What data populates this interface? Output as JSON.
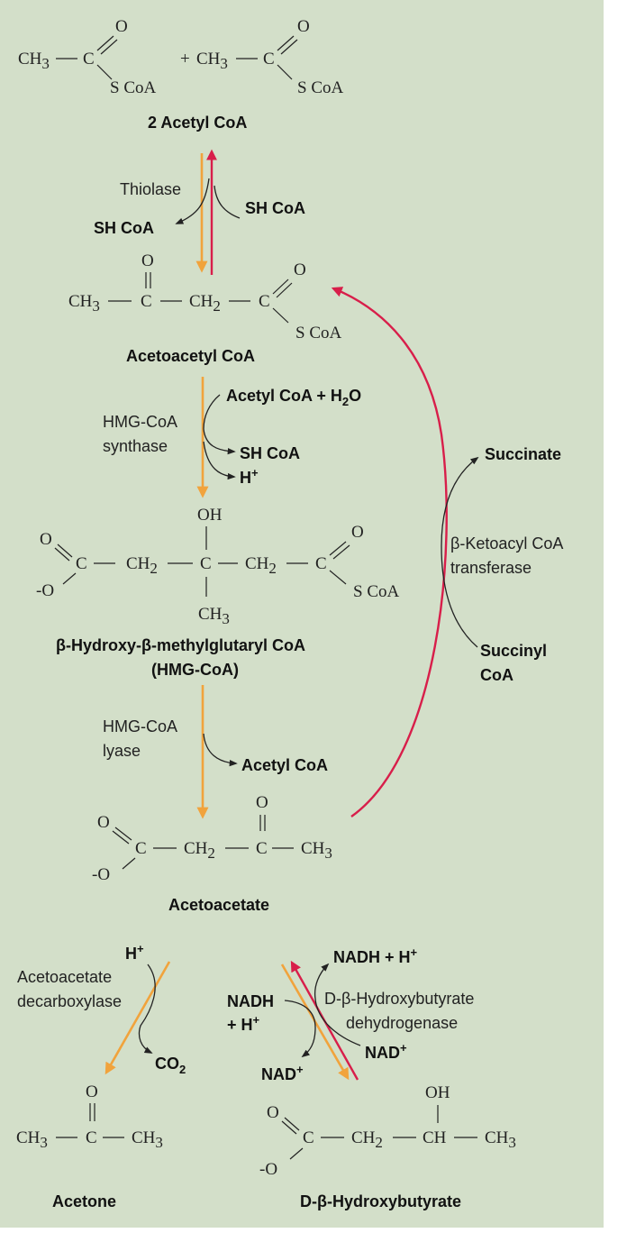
{
  "molecules": {
    "acetyl_coa": {
      "ch3": "CH",
      "sub3": "3",
      "c": "C",
      "o": "O",
      "scoa": "S CoA",
      "plus": "+"
    },
    "acetoacetyl_coa": {
      "ch3": "CH",
      "c": "C",
      "ch2": "CH",
      "o": "O",
      "scoa": "S CoA",
      "dash": "—"
    },
    "hmg": {
      "oh": "OH",
      "ch3": "CH",
      "o": "O",
      "o_minus": "-O",
      "scoa": "S CoA"
    },
    "acetoacetate": {
      "o": "O",
      "o_minus": "-O",
      "c": "C",
      "ch2": "CH",
      "ch3": "CH"
    },
    "acetone": {
      "ch3": "CH",
      "c": "C",
      "o": "O"
    },
    "hydroxybutyrate": {
      "o": "O",
      "o_minus": "-O",
      "c": "C",
      "ch2": "CH",
      "ch": "CH",
      "oh": "OH",
      "ch3": "CH"
    }
  },
  "names": {
    "acetyl_coa_2": "2 Acetyl CoA",
    "acetoacetyl_coa": "Acetoacetyl CoA",
    "hmg_coa_line1": "β-Hydroxy-β-methylglutaryl CoA",
    "hmg_coa_line2": "(HMG-CoA)",
    "acetoacetate": "Acetoacetate",
    "acetone": "Acetone",
    "hydroxybutyrate": "D-β-Hydroxybutyrate"
  },
  "enzymes": {
    "thiolase": "Thiolase",
    "hmg_synthase_1": "HMG-CoA",
    "hmg_synthase_2": "synthase",
    "hmg_lyase_1": "HMG-CoA",
    "hmg_lyase_2": "lyase",
    "transferase_1": "β-Ketoacyl CoA",
    "transferase_2": "transferase",
    "decarboxylase_1": "Acetoacetate",
    "decarboxylase_2": "decarboxylase",
    "dehydrogenase_1": "D-β-Hydroxybutyrate",
    "dehydrogenase_2": "dehydrogenase"
  },
  "cofactors": {
    "sh_coa_in": "SH CoA",
    "sh_coa_out": "SH CoA",
    "acetyl_coa_h2o": "Acetyl CoA + H",
    "h2o_sub": "2",
    "h2o_o": "O",
    "sh_coa_2": "SH CoA",
    "h_plus": "H",
    "plus": "+",
    "acetyl_coa_lyase": "Acetyl CoA",
    "succinate": "Succinate",
    "succinyl": "Succinyl",
    "coa": "CoA",
    "h_plus_decarb": "H",
    "co2": "CO",
    "co2_sub": "2",
    "nadh_h": "NADH + H",
    "nadh": "NADH",
    "plus_h": "+ H",
    "nad_1": "NAD",
    "nad_2": "NAD"
  },
  "colors": {
    "background": "#d3dfc9",
    "forward_arrow": "#f1a33c",
    "reverse_arrow": "#d81e4a",
    "text": "#222222"
  }
}
